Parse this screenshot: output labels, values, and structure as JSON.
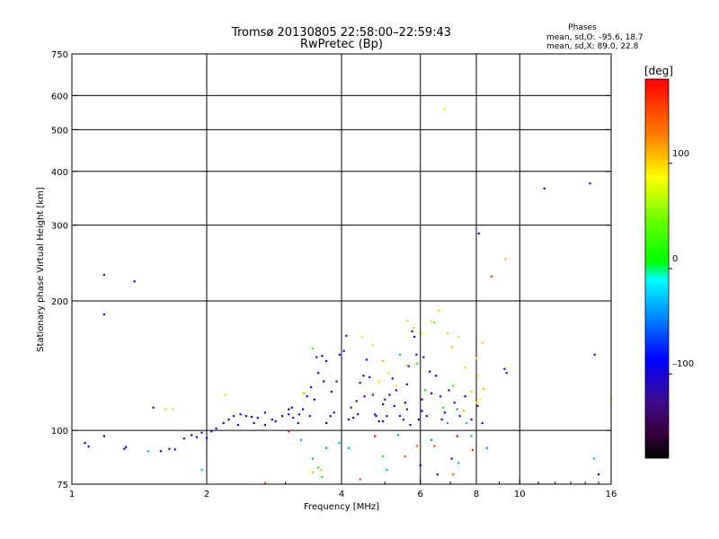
{
  "header": {
    "title_line1": "Tromsø 20130805 22:58:00–22:59:43",
    "title_line2": "RwPretec (Bp)"
  },
  "stats": {
    "heading": "Phases",
    "line_o": "mean, sd,O: –95.6, 18.7",
    "line_x": "mean, sd,X:  89.0, 22.8"
  },
  "chart_data": {
    "type": "scatter",
    "title": "Tromsø 20130805 22:58:00–22:59:43",
    "subtitle": "RwPretec (Bp)",
    "xlabel": "Frequency [MHz]",
    "ylabel": "Stationary phase Virtual Height [km]",
    "x_scale": "log",
    "y_scale": "log",
    "xlim": [
      1,
      16
    ],
    "ylim": [
      75,
      750
    ],
    "x_ticks": [
      1,
      2,
      4,
      6,
      8,
      10,
      16
    ],
    "x_tick_labels": [
      "1",
      "2",
      "4",
      "6",
      "8",
      "10",
      "16"
    ],
    "x_grid": [
      2,
      4,
      6,
      8,
      10
    ],
    "y_ticks": [
      75,
      100,
      200,
      300,
      400,
      500,
      600,
      750
    ],
    "y_tick_labels": [
      "75",
      "100",
      "200",
      "300",
      "400",
      "500",
      "600",
      "750"
    ],
    "y_grid": [
      100,
      200,
      300,
      400,
      500,
      600
    ],
    "grid": true,
    "colorbar": {
      "label": "[deg]",
      "range": [
        -180,
        180
      ],
      "ticks": [
        100,
        0,
        -100
      ],
      "tick_labels": [
        "100",
        "0",
        "–100"
      ]
    },
    "series": [
      {
        "points": [
          [
            1.07,
            93.5,
            -105
          ],
          [
            1.09,
            91.8,
            -110
          ],
          [
            1.18,
            230,
            -110
          ],
          [
            1.18,
            186,
            -95
          ],
          [
            1.38,
            222,
            -100
          ],
          [
            1.32,
            91.5,
            -110
          ],
          [
            1.31,
            90.6,
            -105
          ],
          [
            1.52,
            113,
            -115
          ],
          [
            1.58,
            89.5,
            -110
          ],
          [
            1.65,
            90.6,
            -100
          ],
          [
            1.7,
            90.3,
            -105
          ],
          [
            1.78,
            95.8,
            -110
          ],
          [
            1.85,
            97.5,
            -100
          ],
          [
            1.9,
            96.5,
            -115
          ],
          [
            1.95,
            98.8,
            -105
          ],
          [
            2.0,
            96.0,
            -100
          ],
          [
            2.05,
            99.5,
            -110
          ],
          [
            2.1,
            101,
            -105
          ],
          [
            2.18,
            104,
            -110
          ],
          [
            2.24,
            106,
            -100
          ],
          [
            2.3,
            108,
            -105
          ],
          [
            2.38,
            109,
            -110
          ],
          [
            2.45,
            108,
            -100
          ],
          [
            2.52,
            107.5,
            -110
          ],
          [
            2.6,
            107,
            -105
          ],
          [
            2.55,
            104,
            -115
          ],
          [
            2.7,
            103,
            -110
          ],
          [
            2.85,
            105,
            -100
          ],
          [
            2.95,
            108,
            -110
          ],
          [
            3.05,
            109,
            -105
          ],
          [
            3.12,
            107,
            -115
          ],
          [
            3.22,
            109,
            -110
          ],
          [
            3.28,
            112,
            -100
          ],
          [
            3.35,
            120,
            -105
          ],
          [
            3.42,
            126,
            -110
          ],
          [
            3.48,
            118,
            -100
          ],
          [
            3.55,
            136,
            -105
          ],
          [
            3.52,
            148,
            -110
          ],
          [
            3.62,
            149,
            -100
          ],
          [
            3.7,
            145,
            -105
          ],
          [
            3.78,
            108,
            -110
          ],
          [
            3.8,
            123,
            -115
          ],
          [
            3.9,
            130,
            -105
          ],
          [
            3.96,
            150,
            -110
          ],
          [
            4.05,
            153,
            -100
          ],
          [
            4.1,
            166,
            -105
          ],
          [
            4.15,
            106,
            -110
          ],
          [
            4.25,
            107,
            -115
          ],
          [
            4.32,
            117,
            -105
          ],
          [
            4.4,
            129,
            -110
          ],
          [
            4.48,
            134,
            -100
          ],
          [
            4.55,
            146,
            -105
          ],
          [
            4.62,
            133,
            -110
          ],
          [
            4.7,
            121,
            -115
          ],
          [
            4.78,
            108,
            -105
          ],
          [
            4.85,
            105,
            -100
          ],
          [
            4.95,
            105,
            -110
          ],
          [
            5.05,
            108,
            -105
          ],
          [
            5.12,
            121,
            -110
          ],
          [
            5.2,
            132,
            -100
          ],
          [
            5.3,
            124,
            -105
          ],
          [
            5.4,
            108,
            -110
          ],
          [
            5.5,
            106,
            -115
          ],
          [
            5.55,
            116,
            -105
          ],
          [
            5.65,
            141,
            -100
          ],
          [
            5.75,
            170,
            -110
          ],
          [
            5.82,
            165,
            -105
          ],
          [
            5.88,
            150,
            -115
          ],
          [
            5.95,
            106,
            -110
          ],
          [
            6.05,
            111,
            -100
          ],
          [
            6.2,
            108,
            -105
          ],
          [
            6.35,
            122,
            -110
          ],
          [
            6.5,
            134,
            -100
          ],
          [
            6.65,
            120,
            -105
          ],
          [
            6.8,
            110,
            -110
          ],
          [
            6.95,
            124,
            -105
          ],
          [
            7.15,
            116,
            -115
          ],
          [
            7.35,
            108,
            -110
          ],
          [
            7.55,
            120,
            -100
          ],
          [
            7.8,
            106,
            -105
          ],
          [
            8.05,
            114,
            -110
          ],
          [
            8.25,
            104,
            -100
          ],
          [
            6.0,
            83,
            -100
          ],
          [
            6.55,
            79,
            -105
          ],
          [
            7.05,
            86,
            -110
          ],
          [
            8.1,
            287,
            -105
          ],
          [
            9.25,
            139,
            -110
          ],
          [
            9.35,
            136,
            -105
          ],
          [
            11.35,
            365,
            -100
          ],
          [
            14.35,
            375,
            -105
          ],
          [
            14.7,
            150,
            -110
          ],
          [
            15.0,
            79,
            -110
          ],
          [
            4.2,
            113,
            -105
          ],
          [
            4.75,
            109,
            -110
          ],
          [
            5.25,
            114,
            -100
          ],
          [
            3.65,
            130,
            -105
          ],
          [
            3.1,
            113,
            -110
          ],
          [
            2.8,
            106,
            -105
          ],
          [
            2.35,
            103,
            -100
          ],
          [
            4.35,
            109,
            -110
          ],
          [
            3.85,
            110,
            -115
          ],
          [
            5.6,
            128,
            -105
          ],
          [
            6.1,
            148,
            -110
          ],
          [
            6.3,
            137,
            -100
          ],
          [
            4.5,
            120,
            -105
          ],
          [
            5.0,
            118,
            -110
          ],
          [
            3.4,
            108,
            -100
          ],
          [
            2.7,
            110,
            -105
          ],
          [
            3.2,
            104,
            -110
          ],
          [
            5.7,
            103,
            -100
          ],
          [
            6.7,
            106,
            -110
          ]
        ]
      },
      {
        "points": [
          [
            1.48,
            89.5,
            -30
          ],
          [
            1.95,
            81,
            -35
          ],
          [
            3.25,
            95,
            -40
          ],
          [
            3.45,
            86,
            -35
          ],
          [
            3.7,
            91,
            -40
          ],
          [
            3.95,
            93.5,
            -30
          ],
          [
            4.15,
            91,
            -35
          ],
          [
            5.35,
            97.5,
            -40
          ],
          [
            5.05,
            81,
            -30
          ],
          [
            5.4,
            150,
            -35
          ],
          [
            6.35,
            95,
            -40
          ],
          [
            7.3,
            84,
            -30
          ],
          [
            7.8,
            97,
            -35
          ],
          [
            8.45,
            91,
            -40
          ],
          [
            14.65,
            86,
            -30
          ],
          [
            6.9,
            104,
            -35
          ],
          [
            7.25,
            112,
            -40
          ],
          [
            7.6,
            104,
            -30
          ]
        ]
      },
      {
        "points": [
          [
            3.3,
            122,
            15
          ],
          [
            3.55,
            82,
            20
          ],
          [
            3.62,
            78,
            10
          ],
          [
            4.95,
            87,
            15
          ],
          [
            5.9,
            143,
            20
          ],
          [
            6.15,
            124,
            10
          ],
          [
            6.75,
            113,
            15
          ],
          [
            7.1,
            127,
            20
          ],
          [
            6.45,
            178,
            30
          ],
          [
            3.45,
            155,
            25
          ]
        ]
      },
      {
        "points": [
          [
            1.62,
            112,
            110
          ],
          [
            1.68,
            112,
            100
          ],
          [
            2.2,
            121,
            100
          ],
          [
            3.28,
            122,
            90
          ],
          [
            3.6,
            81,
            105
          ],
          [
            4.45,
            165,
            95
          ],
          [
            4.7,
            158,
            100
          ],
          [
            4.95,
            145,
            110
          ],
          [
            5.1,
            136,
            95
          ],
          [
            5.6,
            180,
            100
          ],
          [
            5.8,
            173,
            105
          ],
          [
            6.05,
            168,
            90
          ],
          [
            6.35,
            179,
            95
          ],
          [
            6.8,
            558,
            75
          ],
          [
            6.9,
            168,
            100
          ],
          [
            7.05,
            156,
            110
          ],
          [
            7.3,
            165,
            100
          ],
          [
            7.55,
            140,
            95
          ],
          [
            7.8,
            123,
            105
          ],
          [
            8.0,
            116,
            100
          ],
          [
            8.15,
            118,
            95
          ],
          [
            8.3,
            125,
            110
          ],
          [
            8.05,
            134,
            100
          ],
          [
            8.25,
            160,
            105
          ],
          [
            8.0,
            147,
            95
          ],
          [
            9.3,
            250,
            110
          ],
          [
            16.0,
            118,
            100
          ],
          [
            5.3,
            127,
            100
          ],
          [
            4.85,
            130,
            95
          ],
          [
            6.6,
            190,
            105
          ],
          [
            7.5,
            111,
            110
          ],
          [
            3.45,
            80,
            105
          ],
          [
            5.6,
            142,
            100
          ]
        ]
      },
      {
        "points": [
          [
            1.18,
            97,
            -165
          ],
          [
            4.95,
            115,
            -140
          ],
          [
            5.6,
            112,
            -150
          ],
          [
            6.05,
            118,
            -145
          ],
          [
            3.05,
            112,
            -155
          ],
          [
            3.7,
            104,
            -160
          ]
        ]
      },
      {
        "points": [
          [
            2.7,
            75.5,
            150
          ],
          [
            5.55,
            87,
            140
          ],
          [
            6.45,
            92,
            150
          ],
          [
            7.85,
            90,
            160
          ],
          [
            8.65,
            228,
            165
          ],
          [
            5.9,
            92,
            145
          ],
          [
            7.1,
            79,
            140
          ],
          [
            4.4,
            77,
            150
          ]
        ]
      },
      {
        "points": [
          [
            3.05,
            99.5,
            200
          ],
          [
            4.75,
            97,
            200
          ],
          [
            7.25,
            97,
            200
          ]
        ]
      }
    ]
  }
}
